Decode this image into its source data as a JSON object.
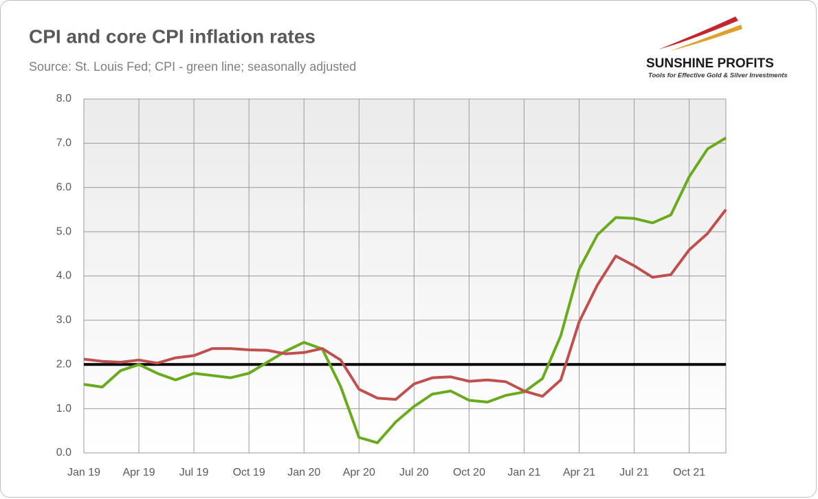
{
  "chart_data": {
    "type": "line",
    "title": "CPI and core CPI inflation rates",
    "subtitle": "Source: St. Louis Fed; CPI - green line; seasonally adjusted",
    "categories": [
      "Jan 19",
      null,
      null,
      "Apr 19",
      null,
      null,
      "Jul 19",
      null,
      null,
      "Oct 19",
      null,
      null,
      "Jan 20",
      null,
      null,
      "Apr 20",
      null,
      null,
      "Jul 20",
      null,
      null,
      "Oct 20",
      null,
      null,
      "Jan 21",
      null,
      null,
      "Apr 21",
      null,
      null,
      "Jul 21",
      null,
      null,
      "Oct 21",
      null,
      null
    ],
    "series": [
      {
        "color": "#6aaa1e",
        "values": [
          1.55,
          1.49,
          1.86,
          2.0,
          1.8,
          1.65,
          1.8,
          1.75,
          1.7,
          1.8,
          2.05,
          2.3,
          2.5,
          2.35,
          1.5,
          0.35,
          0.23,
          0.7,
          1.05,
          1.33,
          1.4,
          1.19,
          1.15,
          1.3,
          1.38,
          1.68,
          2.65,
          4.15,
          4.93,
          5.32,
          5.3,
          5.2,
          5.38,
          6.24,
          6.87,
          7.12
        ]
      },
      {
        "color": "#c0504d",
        "values": [
          2.12,
          2.07,
          2.05,
          2.1,
          2.03,
          2.15,
          2.2,
          2.36,
          2.36,
          2.33,
          2.32,
          2.24,
          2.27,
          2.36,
          2.1,
          1.44,
          1.24,
          1.21,
          1.56,
          1.7,
          1.72,
          1.62,
          1.65,
          1.61,
          1.4,
          1.28,
          1.65,
          2.96,
          3.8,
          4.45,
          4.23,
          3.97,
          4.03,
          4.59,
          4.96,
          5.5
        ]
      }
    ],
    "ylim": [
      0,
      8
    ],
    "yticks": [
      {
        "value": 0,
        "label": "0.0"
      },
      {
        "value": 1,
        "label": "1.0"
      },
      {
        "value": 2,
        "label": "2.0"
      },
      {
        "value": 3,
        "label": "3.0"
      },
      {
        "value": 4,
        "label": "4.0"
      },
      {
        "value": 5,
        "label": "5.0"
      },
      {
        "value": 6,
        "label": "6.0"
      },
      {
        "value": 7,
        "label": "7.0"
      },
      {
        "value": 8,
        "label": "8.0"
      }
    ],
    "reference_line": 2,
    "grid": true
  },
  "logo": {
    "name": "SUNSHINE PROFITS",
    "tagline": "Tools for Effective Gold & Silver Investments"
  }
}
